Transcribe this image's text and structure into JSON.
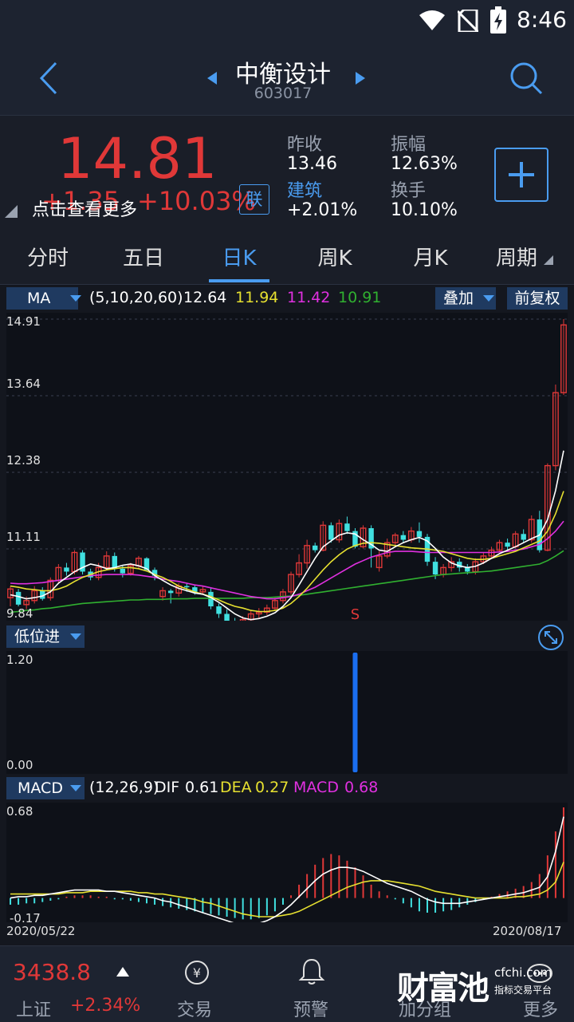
{
  "status": {
    "time": "8:46"
  },
  "nav": {
    "title": "中衡设计",
    "code": "603017"
  },
  "quote": {
    "price": "14.81",
    "change": "+1.35",
    "change_pct": "+10.03%",
    "lian": "联",
    "more_text": "点击查看更多",
    "prev_close_label": "昨收",
    "prev_close": "13.46",
    "amplitude_label": "振幅",
    "amplitude": "12.63%",
    "sector_label": "建筑",
    "sector_change": "+2.01%",
    "turnover_label": "换手",
    "turnover": "10.10%"
  },
  "tabs": [
    "分时",
    "五日",
    "日K",
    "周K",
    "月K",
    "周期"
  ],
  "active_tab": "日K",
  "ma": {
    "label": "MA",
    "params": "(5,10,20,60)",
    "v5": "12.64",
    "v10": "11.94",
    "v20": "11.42",
    "v60": "10.91",
    "overlay": "叠加",
    "adjust": "前复权",
    "colors": {
      "v5": "#ffffff",
      "v10": "#e6e030",
      "v20": "#e030e0",
      "v60": "#30b030"
    }
  },
  "price_axis": [
    "14.91",
    "13.64",
    "12.38",
    "11.11",
    "9.84"
  ],
  "signal_mark": "S",
  "indicator": {
    "label": "低位进",
    "axis_top": "1.20",
    "axis_bottom": "0.00"
  },
  "macd": {
    "label": "MACD",
    "params": "(12,26,9)",
    "dif_label": "DIF",
    "dif": "0.61",
    "dea_label": "DEA",
    "dea": "0.27",
    "macd_label": "MACD",
    "macd": "0.68",
    "axis_top": "0.68",
    "axis_bottom": "-0.17"
  },
  "dates": {
    "start": "2020/05/22",
    "end": "2020/08/17"
  },
  "bottom": {
    "index_value": "3438.8",
    "index_name": "上证",
    "index_change": "+2.34%",
    "trade": "交易",
    "alert": "预警",
    "group": "加分组",
    "more": "更多",
    "watermark": "财富池",
    "watermark_site": "cfchi.com",
    "watermark_sub": "指标交易平台"
  },
  "chart_data": {
    "type": "candlestick",
    "ylim": [
      9.84,
      14.91
    ],
    "candles": [
      [
        10.1,
        10.25,
        9.95,
        10.3
      ],
      [
        10.2,
        9.98,
        9.95,
        10.25
      ],
      [
        9.98,
        10.05,
        9.9,
        10.12
      ],
      [
        10.05,
        10.22,
        10.0,
        10.3
      ],
      [
        10.22,
        10.08,
        10.05,
        10.28
      ],
      [
        10.1,
        10.4,
        10.05,
        10.45
      ],
      [
        10.4,
        10.62,
        10.35,
        10.68
      ],
      [
        10.62,
        10.55,
        10.48,
        10.7
      ],
      [
        10.55,
        10.88,
        10.5,
        10.92
      ],
      [
        10.88,
        10.55,
        10.5,
        10.92
      ],
      [
        10.55,
        10.45,
        10.4,
        10.6
      ],
      [
        10.45,
        10.62,
        10.4,
        10.7
      ],
      [
        10.62,
        10.82,
        10.58,
        10.9
      ],
      [
        10.82,
        10.6,
        10.55,
        10.88
      ],
      [
        10.6,
        10.52,
        10.45,
        10.65
      ],
      [
        10.52,
        10.65,
        10.48,
        10.7
      ],
      [
        10.65,
        10.78,
        10.6,
        10.82
      ],
      [
        10.78,
        10.58,
        10.55,
        10.8
      ],
      [
        10.58,
        10.48,
        10.4,
        10.62
      ],
      [
        10.12,
        10.22,
        10.05,
        10.28
      ],
      [
        10.22,
        10.18,
        10.0,
        10.25
      ],
      [
        10.18,
        10.3,
        10.12,
        10.35
      ],
      [
        10.3,
        10.28,
        10.2,
        10.35
      ],
      [
        10.28,
        10.2,
        10.15,
        10.32
      ],
      [
        10.2,
        10.24,
        10.15,
        10.3
      ],
      [
        10.2,
        9.95,
        9.9,
        10.26
      ],
      [
        9.95,
        9.82,
        9.75,
        10.0
      ],
      [
        9.82,
        9.7,
        9.65,
        9.9
      ],
      [
        9.7,
        9.55,
        9.5,
        9.75
      ],
      [
        9.55,
        9.72,
        9.5,
        9.78
      ],
      [
        9.72,
        9.82,
        9.68,
        9.88
      ],
      [
        9.82,
        9.85,
        9.75,
        9.92
      ],
      [
        9.85,
        9.92,
        9.8,
        9.98
      ],
      [
        9.92,
        10.05,
        9.88,
        10.1
      ],
      [
        10.05,
        10.2,
        10.0,
        10.25
      ],
      [
        10.2,
        10.5,
        10.15,
        10.55
      ],
      [
        10.5,
        10.7,
        10.45,
        10.85
      ],
      [
        10.7,
        11.0,
        10.6,
        11.1
      ],
      [
        11.0,
        10.92,
        10.88,
        11.05
      ],
      [
        10.92,
        11.35,
        10.9,
        11.42
      ],
      [
        11.35,
        11.1,
        11.05,
        11.4
      ],
      [
        11.1,
        11.38,
        11.05,
        11.45
      ],
      [
        11.38,
        11.25,
        11.2,
        11.5
      ],
      [
        11.25,
        10.98,
        10.95,
        11.3
      ],
      [
        10.98,
        11.3,
        10.95,
        11.35
      ],
      [
        11.3,
        10.95,
        10.62,
        11.35
      ],
      [
        10.62,
        10.82,
        10.55,
        10.9
      ],
      [
        10.82,
        11.05,
        10.78,
        11.12
      ],
      [
        11.05,
        11.18,
        11.0,
        11.22
      ],
      [
        11.18,
        11.1,
        11.05,
        11.25
      ],
      [
        11.1,
        11.25,
        11.05,
        11.32
      ],
      [
        11.25,
        11.15,
        11.05,
        11.4
      ],
      [
        11.15,
        10.72,
        10.65,
        11.2
      ],
      [
        10.72,
        10.5,
        10.42,
        10.8
      ],
      [
        10.5,
        10.62,
        10.45,
        10.68
      ],
      [
        10.62,
        10.72,
        10.55,
        10.8
      ],
      [
        10.72,
        10.62,
        10.55,
        10.78
      ],
      [
        10.62,
        10.55,
        10.5,
        10.68
      ],
      [
        10.55,
        10.72,
        10.5,
        10.78
      ],
      [
        10.72,
        10.82,
        10.68,
        10.88
      ],
      [
        10.82,
        10.92,
        10.78,
        10.98
      ],
      [
        10.92,
        11.05,
        10.88,
        11.1
      ],
      [
        11.05,
        10.98,
        10.92,
        11.12
      ],
      [
        10.98,
        11.2,
        10.95,
        11.25
      ],
      [
        11.2,
        11.1,
        11.05,
        11.28
      ],
      [
        11.1,
        11.45,
        11.05,
        11.52
      ],
      [
        11.45,
        10.92,
        10.88,
        11.6
      ],
      [
        10.92,
        12.38,
        10.9,
        12.42
      ],
      [
        12.38,
        13.64,
        12.3,
        13.78
      ],
      [
        13.64,
        14.81,
        13.6,
        14.91
      ]
    ],
    "ma5": [
      10.15,
      10.12,
      10.08,
      10.1,
      10.13,
      10.2,
      10.35,
      10.45,
      10.55,
      10.62,
      10.68,
      10.65,
      10.6,
      10.62,
      10.66,
      10.68,
      10.65,
      10.6,
      10.48,
      10.4,
      10.32,
      10.26,
      10.22,
      10.18,
      10.16,
      10.1,
      10.02,
      9.92,
      9.82,
      9.75,
      9.72,
      9.74,
      9.78,
      9.84,
      9.95,
      10.1,
      10.32,
      10.55,
      10.78,
      10.98,
      11.08,
      11.18,
      11.22,
      11.2,
      11.1,
      11.02,
      10.92,
      10.9,
      10.98,
      11.05,
      11.1,
      11.14,
      11.08,
      10.95,
      10.8,
      10.7,
      10.65,
      10.62,
      10.64,
      10.7,
      10.78,
      10.86,
      10.92,
      10.98,
      11.05,
      11.12,
      11.18,
      11.45,
      11.95,
      12.64
    ],
    "ma10": [
      10.3,
      10.28,
      10.25,
      10.24,
      10.22,
      10.22,
      10.25,
      10.3,
      10.38,
      10.45,
      10.5,
      10.55,
      10.58,
      10.6,
      10.62,
      10.62,
      10.6,
      10.56,
      10.5,
      10.45,
      10.38,
      10.3,
      10.25,
      10.2,
      10.16,
      10.12,
      10.06,
      10.0,
      9.95,
      9.92,
      9.88,
      9.86,
      9.86,
      9.88,
      9.92,
      10.0,
      10.12,
      10.26,
      10.42,
      10.58,
      10.72,
      10.84,
      10.94,
      11.0,
      11.04,
      11.05,
      11.04,
      11.02,
      11.0,
      10.98,
      10.96,
      10.95,
      10.94,
      10.92,
      10.9,
      10.86,
      10.82,
      10.78,
      10.76,
      10.76,
      10.78,
      10.82,
      10.86,
      10.9,
      10.96,
      11.02,
      11.08,
      11.25,
      11.55,
      11.94
    ],
    "ma20": [
      10.35,
      10.34,
      10.34,
      10.35,
      10.36,
      10.38,
      10.4,
      10.42,
      10.44,
      10.46,
      10.48,
      10.49,
      10.5,
      10.5,
      10.5,
      10.5,
      10.49,
      10.47,
      10.45,
      10.42,
      10.4,
      10.38,
      10.35,
      10.32,
      10.3,
      10.27,
      10.24,
      10.21,
      10.18,
      10.15,
      10.12,
      10.1,
      10.08,
      10.08,
      10.1,
      10.12,
      10.16,
      10.22,
      10.28,
      10.36,
      10.44,
      10.52,
      10.6,
      10.68,
      10.74,
      10.8,
      10.84,
      10.88,
      10.9,
      10.9,
      10.9,
      10.89,
      10.88,
      10.88,
      10.88,
      10.88,
      10.88,
      10.88,
      10.88,
      10.88,
      10.88,
      10.89,
      10.9,
      10.92,
      10.94,
      10.98,
      11.02,
      11.12,
      11.25,
      11.42
    ],
    "ma60": [
      9.85,
      9.86,
      9.88,
      9.89,
      9.91,
      9.92,
      9.94,
      9.96,
      9.98,
      10.0,
      10.01,
      10.02,
      10.03,
      10.04,
      10.05,
      10.06,
      10.06,
      10.07,
      10.07,
      10.07,
      10.08,
      10.08,
      10.08,
      10.09,
      10.09,
      10.09,
      10.09,
      10.09,
      10.09,
      10.09,
      10.1,
      10.1,
      10.1,
      10.11,
      10.12,
      10.13,
      10.14,
      10.16,
      10.18,
      10.2,
      10.22,
      10.24,
      10.26,
      10.28,
      10.3,
      10.32,
      10.34,
      10.36,
      10.38,
      10.4,
      10.42,
      10.44,
      10.46,
      10.48,
      10.5,
      10.51,
      10.52,
      10.53,
      10.54,
      10.55,
      10.56,
      10.58,
      10.6,
      10.62,
      10.64,
      10.66,
      10.68,
      10.74,
      10.82,
      10.91
    ],
    "signal_index": 43,
    "signal_value": 1.2,
    "macd_hist": [
      -0.05,
      -0.05,
      -0.04,
      -0.04,
      -0.03,
      -0.02,
      -0.01,
      0.01,
      0.02,
      0.02,
      0.02,
      0.01,
      0.01,
      -0.01,
      -0.01,
      -0.02,
      -0.03,
      -0.04,
      -0.05,
      -0.06,
      -0.07,
      -0.08,
      -0.09,
      -0.1,
      -0.11,
      -0.12,
      -0.13,
      -0.14,
      -0.15,
      -0.16,
      -0.16,
      -0.15,
      -0.13,
      -0.1,
      -0.05,
      0.02,
      0.1,
      0.18,
      0.25,
      0.3,
      0.33,
      0.32,
      0.28,
      0.23,
      0.17,
      0.1,
      0.05,
      0.02,
      -0.01,
      -0.04,
      -0.07,
      -0.1,
      -0.11,
      -0.11,
      -0.1,
      -0.09,
      -0.07,
      -0.05,
      -0.03,
      -0.01,
      0.01,
      0.03,
      0.05,
      0.07,
      0.09,
      0.12,
      0.18,
      0.32,
      0.5,
      0.68
    ],
    "dif": [
      0.0,
      0.01,
      0.01,
      0.02,
      0.02,
      0.03,
      0.04,
      0.05,
      0.06,
      0.06,
      0.06,
      0.06,
      0.05,
      0.05,
      0.04,
      0.03,
      0.02,
      0.01,
      0.0,
      -0.02,
      -0.03,
      -0.05,
      -0.07,
      -0.09,
      -0.11,
      -0.13,
      -0.15,
      -0.17,
      -0.19,
      -0.2,
      -0.2,
      -0.19,
      -0.17,
      -0.14,
      -0.1,
      -0.05,
      0.01,
      0.07,
      0.13,
      0.18,
      0.21,
      0.23,
      0.23,
      0.22,
      0.2,
      0.17,
      0.14,
      0.11,
      0.09,
      0.07,
      0.05,
      0.02,
      -0.01,
      -0.03,
      -0.04,
      -0.04,
      -0.04,
      -0.03,
      -0.02,
      -0.01,
      0.0,
      0.01,
      0.02,
      0.03,
      0.04,
      0.06,
      0.08,
      0.16,
      0.35,
      0.61
    ],
    "dea": [
      0.03,
      0.03,
      0.03,
      0.03,
      0.03,
      0.03,
      0.03,
      0.04,
      0.04,
      0.04,
      0.05,
      0.05,
      0.05,
      0.05,
      0.05,
      0.05,
      0.04,
      0.04,
      0.03,
      0.03,
      0.02,
      0.01,
      0.0,
      -0.01,
      -0.03,
      -0.04,
      -0.06,
      -0.08,
      -0.1,
      -0.12,
      -0.13,
      -0.14,
      -0.14,
      -0.14,
      -0.13,
      -0.12,
      -0.1,
      -0.07,
      -0.04,
      -0.01,
      0.02,
      0.05,
      0.08,
      0.1,
      0.12,
      0.13,
      0.13,
      0.13,
      0.12,
      0.11,
      0.1,
      0.09,
      0.07,
      0.05,
      0.04,
      0.03,
      0.02,
      0.01,
      0.0,
      0.0,
      0.0,
      0.0,
      0.0,
      0.01,
      0.01,
      0.02,
      0.03,
      0.06,
      0.12,
      0.27
    ]
  }
}
